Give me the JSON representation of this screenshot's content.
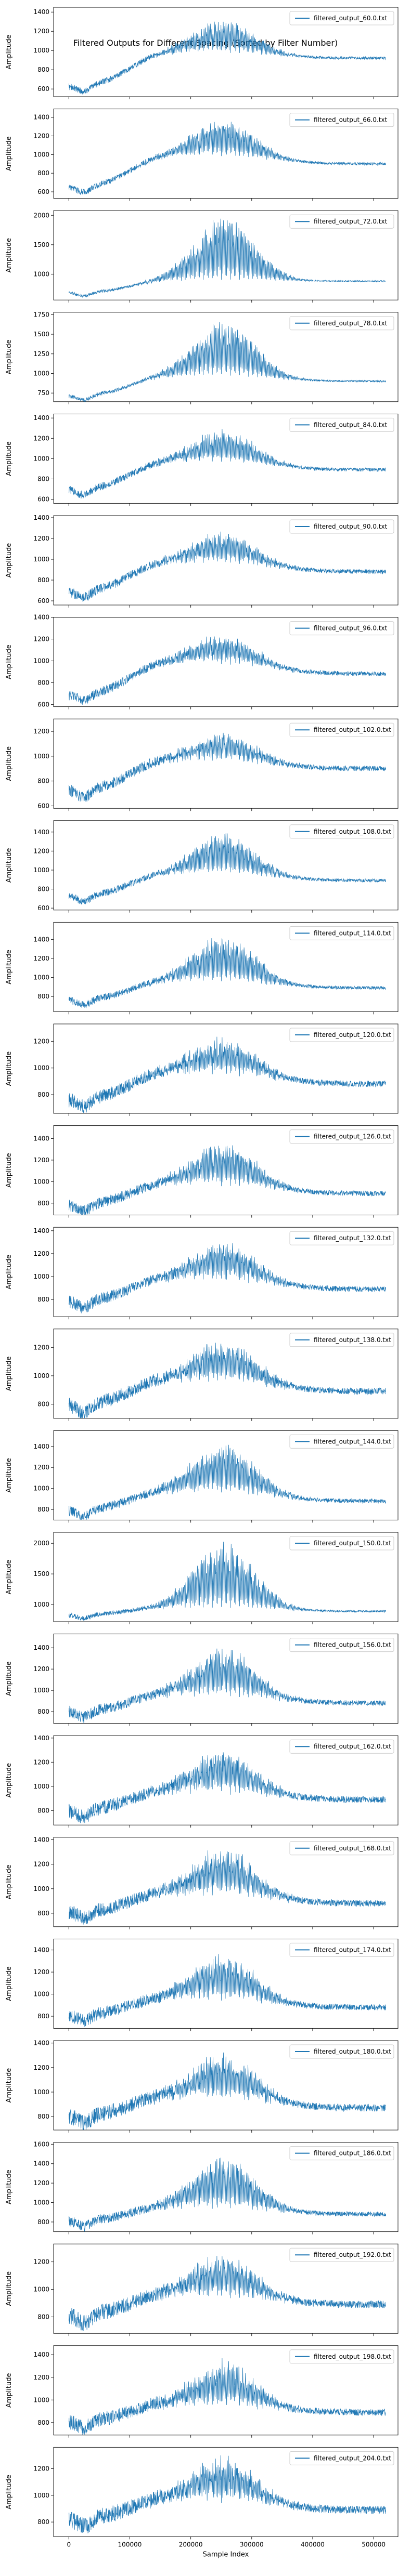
{
  "chart_data": {
    "type": "line",
    "title": "Filtered Outputs for Different Spacing (Sorted by Filter Number)",
    "xlabel": "Sample Index",
    "ylabel": "Amplitude",
    "xlim": [
      -25000,
      540000
    ],
    "x_ticks": [
      0,
      100000,
      200000,
      300000,
      400000,
      500000
    ],
    "series_color": "#1f77b4",
    "legend_position": "upper right",
    "grid": false,
    "subplots": [
      {
        "name": "filtered_output_60.0.txt",
        "ylim": [
          520,
          1450
        ],
        "y_ticks": [
          600,
          800,
          1000,
          1200,
          1400
        ],
        "base_start": 620,
        "base_plateau": 1000,
        "base_end": 920,
        "osc_amp": 330,
        "noise": 25
      },
      {
        "name": "filtered_output_66.0.txt",
        "ylim": [
          530,
          1490
        ],
        "y_ticks": [
          600,
          800,
          1000,
          1200,
          1400
        ],
        "base_start": 640,
        "base_plateau": 1010,
        "base_end": 900,
        "osc_amp": 380,
        "noise": 25
      },
      {
        "name": "filtered_output_72.0.txt",
        "ylim": [
          560,
          2080
        ],
        "y_ticks": [
          1000,
          1500,
          2000
        ],
        "base_start": 680,
        "base_plateau": 900,
        "base_end": 880,
        "osc_amp": 1100,
        "noise": 20
      },
      {
        "name": "filtered_output_78.0.txt",
        "ylim": [
          640,
          1780
        ],
        "y_ticks": [
          750,
          1000,
          1250,
          1500,
          1750
        ],
        "base_start": 710,
        "base_plateau": 980,
        "base_end": 900,
        "osc_amp": 720,
        "noise": 20
      },
      {
        "name": "filtered_output_84.0.txt",
        "ylim": [
          560,
          1440
        ],
        "y_ticks": [
          600,
          800,
          1000,
          1200,
          1400
        ],
        "base_start": 690,
        "base_plateau": 990,
        "base_end": 890,
        "osc_amp": 300,
        "noise": 30
      },
      {
        "name": "filtered_output_90.0.txt",
        "ylim": [
          560,
          1420
        ],
        "y_ticks": [
          600,
          800,
          1000,
          1200,
          1400
        ],
        "base_start": 680,
        "base_plateau": 1000,
        "base_end": 880,
        "osc_amp": 260,
        "noise": 35
      },
      {
        "name": "filtered_output_96.0.txt",
        "ylim": [
          580,
          1400
        ],
        "y_ticks": [
          600,
          800,
          1000,
          1200,
          1400
        ],
        "base_start": 680,
        "base_plateau": 1010,
        "base_end": 880,
        "osc_amp": 240,
        "noise": 35
      },
      {
        "name": "filtered_output_102.0.txt",
        "ylim": [
          580,
          1300
        ],
        "y_ticks": [
          600,
          800,
          1000,
          1200
        ],
        "base_start": 720,
        "base_plateau": 990,
        "base_end": 900,
        "osc_amp": 200,
        "noise": 35
      },
      {
        "name": "filtered_output_108.0.txt",
        "ylim": [
          580,
          1520
        ],
        "y_ticks": [
          600,
          800,
          1000,
          1200,
          1400
        ],
        "base_start": 720,
        "base_plateau": 980,
        "base_end": 890,
        "osc_amp": 420,
        "noise": 30
      },
      {
        "name": "filtered_output_114.0.txt",
        "ylim": [
          640,
          1580
        ],
        "y_ticks": [
          800,
          1000,
          1200,
          1400
        ],
        "base_start": 760,
        "base_plateau": 980,
        "base_end": 890,
        "osc_amp": 480,
        "noise": 30
      },
      {
        "name": "filtered_output_120.0.txt",
        "ylim": [
          660,
          1330
        ],
        "y_ticks": [
          800,
          1000,
          1200
        ],
        "base_start": 760,
        "base_plateau": 990,
        "base_end": 880,
        "osc_amp": 240,
        "noise": 40
      },
      {
        "name": "filtered_output_126.0.txt",
        "ylim": [
          690,
          1520
        ],
        "y_ticks": [
          800,
          1000,
          1200,
          1400
        ],
        "base_start": 780,
        "base_plateau": 1000,
        "base_end": 890,
        "osc_amp": 380,
        "noise": 40
      },
      {
        "name": "filtered_output_132.0.txt",
        "ylim": [
          650,
          1430
        ],
        "y_ticks": [
          800,
          1000,
          1200,
          1400
        ],
        "base_start": 780,
        "base_plateau": 1000,
        "base_end": 890,
        "osc_amp": 320,
        "noise": 40
      },
      {
        "name": "filtered_output_138.0.txt",
        "ylim": [
          700,
          1330
        ],
        "y_ticks": [
          800,
          1000,
          1200
        ],
        "base_start": 790,
        "base_plateau": 990,
        "base_end": 890,
        "osc_amp": 260,
        "noise": 40
      },
      {
        "name": "filtered_output_144.0.txt",
        "ylim": [
          700,
          1550
        ],
        "y_ticks": [
          800,
          1000,
          1200,
          1400
        ],
        "base_start": 790,
        "base_plateau": 990,
        "base_end": 880,
        "osc_amp": 450,
        "noise": 35
      },
      {
        "name": "filtered_output_150.0.txt",
        "ylim": [
          720,
          2180
        ],
        "y_ticks": [
          1000,
          1500,
          2000
        ],
        "base_start": 830,
        "base_plateau": 960,
        "base_end": 890,
        "osc_amp": 1100,
        "noise": 30
      },
      {
        "name": "filtered_output_156.0.txt",
        "ylim": [
          690,
          1530
        ],
        "y_ticks": [
          800,
          1000,
          1200,
          1400
        ],
        "base_start": 800,
        "base_plateau": 980,
        "base_end": 880,
        "osc_amp": 430,
        "noise": 40
      },
      {
        "name": "filtered_output_162.0.txt",
        "ylim": [
          680,
          1420
        ],
        "y_ticks": [
          800,
          1000,
          1200,
          1400
        ],
        "base_start": 800,
        "base_plateau": 980,
        "base_end": 890,
        "osc_amp": 330,
        "noise": 45
      },
      {
        "name": "filtered_output_168.0.txt",
        "ylim": [
          690,
          1420
        ],
        "y_ticks": [
          800,
          1000,
          1200,
          1400
        ],
        "base_start": 810,
        "base_plateau": 980,
        "base_end": 880,
        "osc_amp": 360,
        "noise": 45
      },
      {
        "name": "filtered_output_174.0.txt",
        "ylim": [
          690,
          1500
        ],
        "y_ticks": [
          800,
          1000,
          1200,
          1400
        ],
        "base_start": 810,
        "base_plateau": 980,
        "base_end": 880,
        "osc_amp": 400,
        "noise": 45
      },
      {
        "name": "filtered_output_180.0.txt",
        "ylim": [
          690,
          1420
        ],
        "y_ticks": [
          800,
          1000,
          1200,
          1400
        ],
        "base_start": 800,
        "base_plateau": 980,
        "base_end": 870,
        "osc_amp": 350,
        "noise": 50
      },
      {
        "name": "filtered_output_186.0.txt",
        "ylim": [
          700,
          1620
        ],
        "y_ticks": [
          800,
          1000,
          1200,
          1400,
          1600
        ],
        "base_start": 810,
        "base_plateau": 970,
        "base_end": 880,
        "osc_amp": 520,
        "noise": 40
      },
      {
        "name": "filtered_output_192.0.txt",
        "ylim": [
          680,
          1330
        ],
        "y_ticks": [
          800,
          1000,
          1200
        ],
        "base_start": 810,
        "base_plateau": 980,
        "base_end": 890,
        "osc_amp": 280,
        "noise": 45
      },
      {
        "name": "filtered_output_198.0.txt",
        "ylim": [
          690,
          1480
        ],
        "y_ticks": [
          800,
          1000,
          1200,
          1400
        ],
        "base_start": 810,
        "base_plateau": 980,
        "base_end": 890,
        "osc_amp": 360,
        "noise": 50
      },
      {
        "name": "filtered_output_204.0.txt",
        "ylim": [
          690,
          1360
        ],
        "y_ticks": [
          800,
          1000,
          1200
        ],
        "base_start": 820,
        "base_plateau": 990,
        "base_end": 890,
        "osc_amp": 300,
        "noise": 50
      }
    ]
  }
}
